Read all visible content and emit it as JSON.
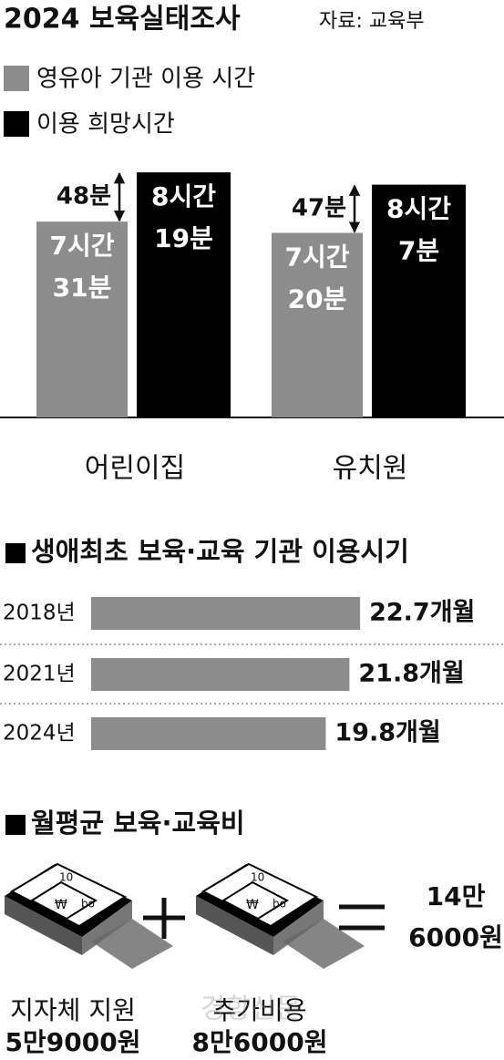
{
  "chart_data": [
    {
      "type": "bar",
      "title": "2024 보육실태조사",
      "source": "자료: 교육부",
      "categories": [
        "어린이집",
        "유치원"
      ],
      "series": [
        {
          "name": "영유아 기관 이용 시간",
          "color": "#8c8c8c",
          "values": [
            451,
            440
          ],
          "value_labels": [
            [
              "7시간",
              "31분"
            ],
            [
              "7시간",
              "20분"
            ]
          ]
        },
        {
          "name": "이용 희망시간",
          "color": "#000000",
          "values": [
            499,
            487
          ],
          "value_labels": [
            [
              "8시간",
              "19분"
            ],
            [
              "8시간",
              "7분"
            ]
          ]
        }
      ],
      "differences": {
        "values": [
          48,
          47
        ],
        "value_labels": [
          "48분",
          "47분"
        ]
      },
      "ylim": [
        260,
        660
      ],
      "legend": "top-left"
    },
    {
      "type": "hbar",
      "title": "생애최초 보육·교육 기관 이용시기",
      "categories": [
        "2018년",
        "2021년",
        "2024년"
      ],
      "values": [
        22.7,
        21.8,
        19.8
      ],
      "value_labels": [
        "22.7개월",
        "21.8개월",
        "19.8개월"
      ],
      "color": "#8c8c8c",
      "xlim": [
        0,
        30
      ]
    }
  ],
  "costs": {
    "title": "월평균 보육·교육비",
    "items": [
      {
        "label": "지자체 지원",
        "value": 59000,
        "value_label": "5만9000원"
      },
      {
        "label": "추가비용",
        "value": 86000,
        "value_label": "8만6000원"
      }
    ],
    "total": {
      "value": 146000,
      "value_label": [
        "14만",
        "6000원"
      ]
    }
  },
  "watermark": "경향신문"
}
